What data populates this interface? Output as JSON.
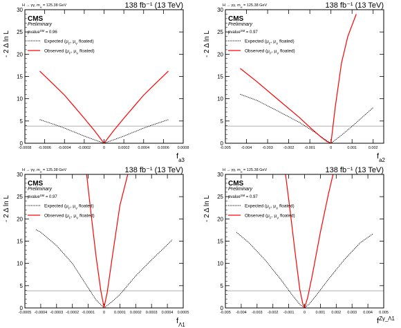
{
  "figure": {
    "colors": {
      "observed": "#ff0000",
      "expected": "#000000",
      "threshold": "#b0b0b0",
      "frame": "#000000"
    }
  },
  "chart_data": [
    {
      "type": "line",
      "process": "H → γγ, m_H = 125.38 GeV",
      "lumi": "138 fb⁻¹ (13 TeV)",
      "experiment": "CMS",
      "status": "Preliminary",
      "pvalue": "pvalue^SM = 0.96",
      "xlabel": "f_a3",
      "ylabel": "- 2 Δ ln L",
      "xlim": [
        -0.0008,
        0.0008
      ],
      "ylim": [
        0,
        30
      ],
      "xticks": [
        -0.0008,
        -0.0006,
        -0.0004,
        -0.0002,
        0,
        0.0002,
        0.0004,
        0.0006,
        0.0008
      ],
      "xtick_labels": [
        "-0.0008",
        "-0.0006",
        "-0.0004",
        "-0.0002",
        "0",
        "0.0002",
        "0.0004",
        "0.0006",
        "0.0008"
      ],
      "yticks": [
        0,
        5,
        10,
        15,
        20,
        25,
        30
      ],
      "threshold_y": 3.84,
      "legend": [
        "Expected (μ_F, μ_V floated)",
        "Observed (μ_F, μ_V floated)"
      ],
      "series": [
        {
          "name": "Expected (μ_F, μ_V floated)",
          "style": "dotted",
          "x": [
            -0.00065,
            -0.0005,
            -0.0004,
            -0.0003,
            -0.0002,
            -0.0001,
            0,
            0.0001,
            0.0002,
            0.0003,
            0.0004,
            0.0005,
            0.00065
          ],
          "y": [
            5.3,
            4.2,
            3.4,
            2.5,
            1.6,
            0.8,
            0,
            0.8,
            1.6,
            2.5,
            3.4,
            4.2,
            5.3
          ]
        },
        {
          "name": "Observed (μ_F, μ_V floated)",
          "style": "solid",
          "x": [
            -0.00065,
            -0.0005,
            -0.0004,
            -0.0003,
            -0.0002,
            -0.0001,
            0,
            0.0001,
            0.0002,
            0.0003,
            0.0004,
            0.0005,
            0.00065
          ],
          "y": [
            16.2,
            13.0,
            10.8,
            8.2,
            5.6,
            2.9,
            0,
            2.9,
            5.6,
            8.2,
            10.8,
            13.0,
            16.2
          ]
        }
      ]
    },
    {
      "type": "line",
      "process": "H → γγ, m_H = 125.38 GeV",
      "lumi": "138 fb⁻¹ (13 TeV)",
      "experiment": "CMS",
      "status": "Preliminary",
      "pvalue": "pvalue^SM = 0.97",
      "xlabel": "f_a2",
      "ylabel": "- 2 Δ ln L",
      "xlim": [
        -0.005,
        0.0025
      ],
      "ylim": [
        0,
        30
      ],
      "xticks": [
        -0.005,
        -0.004,
        -0.003,
        -0.002,
        -0.001,
        0,
        0.001,
        0.002
      ],
      "xtick_labels": [
        "-0.005",
        "-0.004",
        "-0.003",
        "-0.002",
        "-0.001",
        "0",
        "0.001",
        "0.002"
      ],
      "yticks": [
        0,
        5,
        10,
        15,
        20,
        25,
        30
      ],
      "threshold_y": 3.84,
      "legend": [
        "Expected (μ_F, μ_V floated)",
        "Observed (μ_F, μ_V floated)"
      ],
      "series": [
        {
          "name": "Expected (μ_F, μ_V floated)",
          "style": "dotted",
          "x": [
            -0.0043,
            -0.0035,
            -0.0025,
            -0.0015,
            -0.0008,
            -0.0003,
            0,
            0.0005,
            0.001,
            0.0015,
            0.002
          ],
          "y": [
            11.0,
            9.6,
            7.2,
            4.7,
            2.6,
            0.9,
            0,
            1.8,
            3.8,
            5.9,
            8.0
          ]
        },
        {
          "name": "Observed (μ_F, μ_V floated)",
          "style": "solid",
          "x": [
            -0.0043,
            -0.0035,
            -0.0025,
            -0.0015,
            -0.001,
            -0.0005,
            -0.0002,
            0,
            0.0002,
            0.0005,
            0.0008,
            0.0012
          ],
          "y": [
            16.8,
            13.8,
            9.8,
            5.8,
            3.6,
            1.5,
            0.4,
            0,
            8.0,
            18.0,
            24.0,
            29.0
          ]
        }
      ]
    },
    {
      "type": "line",
      "process": "H → γγ, m_H = 125.38 GeV",
      "lumi": "138 fb⁻¹ (13 TeV)",
      "experiment": "CMS",
      "status": "Preliminary",
      "pvalue": "pvalue^SM = 0.97",
      "xlabel": "f_Λ1",
      "ylabel": "- 2 Δ ln L",
      "xlim": [
        -0.0005,
        0.0005
      ],
      "ylim": [
        0,
        30
      ],
      "xticks": [
        -0.0005,
        -0.0004,
        -0.0003,
        -0.0002,
        -0.0001,
        0,
        0.0001,
        0.0002,
        0.0003,
        0.0004,
        0.0005
      ],
      "xtick_labels": [
        "-0.0005",
        "-0.0004",
        "-0.0003",
        "-0.0002",
        "-0.0001",
        "0",
        "0.0001",
        "0.0002",
        "0.0003",
        "0.0004",
        "0.0005"
      ],
      "yticks": [
        0,
        5,
        10,
        15,
        20,
        25,
        30
      ],
      "threshold_y": 3.84,
      "legend": [
        "Expected (μ_F, μ_V floated)",
        "Observed (μ_F, μ_V floated)"
      ],
      "series": [
        {
          "name": "Expected (μ_F, μ_V floated)",
          "style": "dotted",
          "x": [
            -0.00043,
            -0.0004,
            -0.0003,
            -0.0002,
            -0.0001,
            -5e-05,
            0,
            5e-05,
            0.0001,
            0.0002,
            0.0003,
            0.0004,
            0.00043
          ],
          "y": [
            17.6,
            17.0,
            14.0,
            10.0,
            4.5,
            1.8,
            0,
            1.4,
            3.0,
            7.2,
            10.8,
            14.2,
            15.3
          ]
        },
        {
          "name": "Observed (μ_F, μ_V floated)",
          "style": "solid",
          "x": [
            -0.00011,
            -8e-05,
            -5e-05,
            -2e-05,
            0,
            2e-05,
            5e-05,
            0.0001,
            0.00015
          ],
          "y": [
            30.0,
            20.5,
            11.5,
            3.8,
            0.1,
            3.5,
            11.0,
            23.0,
            30.0
          ]
        }
      ]
    },
    {
      "type": "line",
      "process": "H → γγ, m_H = 125.38 GeV",
      "lumi": "138 fb⁻¹ (13 TeV)",
      "experiment": "CMS",
      "status": "Preliminary",
      "pvalue": "pvalue^SM = 0.97",
      "xlabel": "f^Zγ_Λ1",
      "ylabel": "- 2 Δ ln L",
      "xlim": [
        -0.005,
        0.005
      ],
      "ylim": [
        0,
        30
      ],
      "xticks": [
        -0.005,
        -0.004,
        -0.003,
        -0.002,
        -0.001,
        0,
        0.001,
        0.002,
        0.003,
        0.004,
        0.005
      ],
      "xtick_labels": [
        "-0.005",
        "-0.004",
        "-0.003",
        "-0.002",
        "-0.001",
        "0",
        "0.001",
        "0.002",
        "0.003",
        "0.004",
        "0.005"
      ],
      "yticks": [
        0,
        5,
        10,
        15,
        20,
        25,
        30
      ],
      "threshold_y": 3.84,
      "legend": [
        "Expected (μ_F, μ_V floated)",
        "Observed (μ_F, μ_V floated)"
      ],
      "series": [
        {
          "name": "Expected (μ_F, μ_V floated)",
          "style": "dotted",
          "x": [
            -0.0043,
            -0.0035,
            -0.0025,
            -0.0015,
            -0.0008,
            -0.0003,
            0,
            0.0003,
            0.0008,
            0.0015,
            0.0025,
            0.0035,
            0.0043
          ],
          "y": [
            17.0,
            14.6,
            10.8,
            6.4,
            3.0,
            0.8,
            0,
            0.9,
            3.1,
            6.4,
            10.8,
            14.6,
            16.6
          ]
        },
        {
          "name": "Observed (μ_F, μ_V floated)",
          "style": "solid",
          "x": [
            -0.0012,
            -0.0009,
            -0.0006,
            -0.0003,
            -0.0001,
            0,
            0.0002,
            0.0005,
            0.001,
            0.0015,
            0.0018
          ],
          "y": [
            30.0,
            21.5,
            12.5,
            4.2,
            0.8,
            0,
            2.4,
            7.5,
            17.0,
            25.5,
            30.0
          ]
        }
      ]
    }
  ]
}
